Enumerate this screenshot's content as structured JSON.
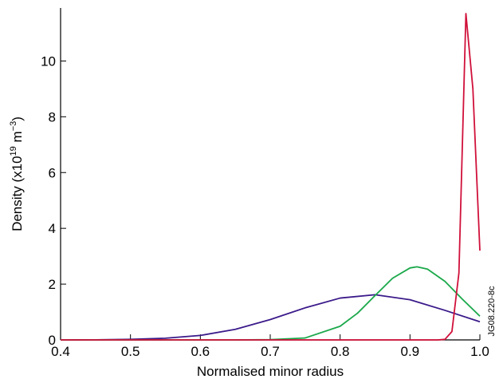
{
  "chart_data": {
    "type": "line",
    "xlabel": "Normalised minor radius",
    "ylabel": {
      "parts": [
        "Density (x10",
        "19",
        " m",
        "−3",
        ")"
      ]
    },
    "annotation": "JG08.220-8c",
    "xlim": [
      0.4,
      1.0
    ],
    "ylim": [
      0,
      11.9
    ],
    "xticks": [
      0.4,
      0.5,
      0.6,
      0.7,
      0.8,
      0.9,
      {
        "value": 1,
        "label": "1.0"
      }
    ],
    "yticks": [
      0,
      2,
      4,
      6,
      8,
      10
    ],
    "series": [
      {
        "color": "#3b1a8a",
        "x": [
          0.4,
          0.45,
          0.5,
          0.55,
          0.6,
          0.65,
          0.7,
          0.75,
          0.8,
          0.85,
          0.9,
          0.95,
          1.0
        ],
        "values": [
          0.0,
          0.004,
          0.02,
          0.06,
          0.16,
          0.38,
          0.73,
          1.15,
          1.5,
          1.62,
          1.44,
          1.06,
          0.65
        ]
      },
      {
        "color": "#1aa84a",
        "x": [
          0.4,
          0.65,
          0.7,
          0.75,
          0.8,
          0.825,
          0.85,
          0.875,
          0.9,
          0.91,
          0.925,
          0.95,
          0.975,
          1.0
        ],
        "values": [
          0,
          0,
          0.01,
          0.07,
          0.49,
          0.96,
          1.59,
          2.21,
          2.58,
          2.62,
          2.54,
          2.1,
          1.46,
          0.85
        ]
      },
      {
        "color": "#d0103a",
        "x": [
          0.4,
          0.94,
          0.95,
          0.96,
          0.97,
          0.98,
          0.99,
          1.0
        ],
        "values": [
          0,
          0,
          0.02,
          0.3,
          2.4,
          11.7,
          9.0,
          3.2
        ]
      }
    ]
  }
}
